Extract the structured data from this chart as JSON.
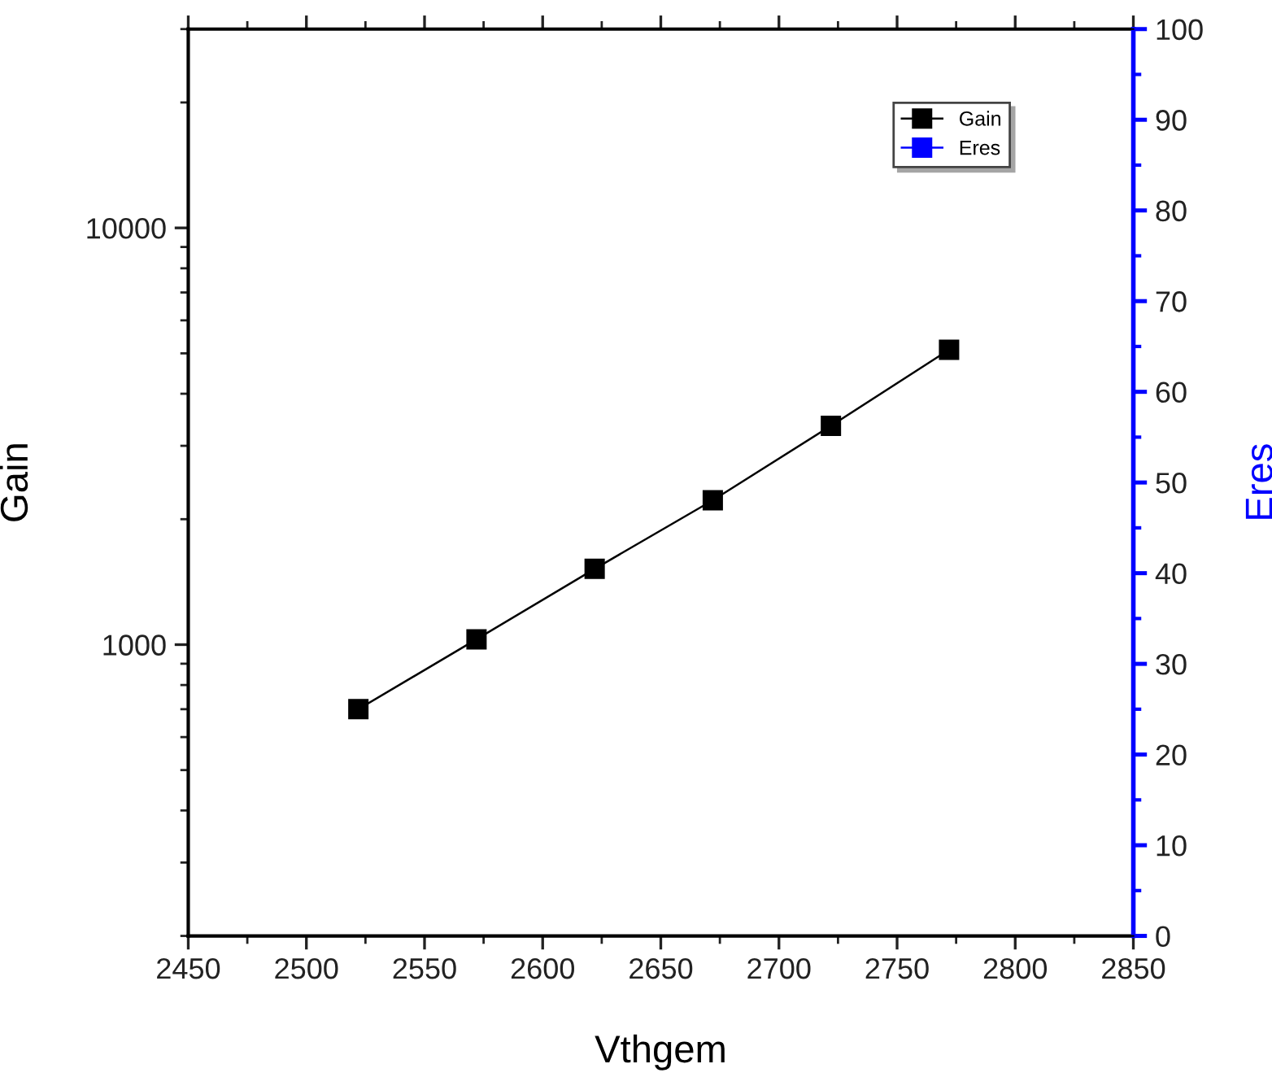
{
  "chart_data": {
    "type": "line",
    "xlabel": "Vthgem",
    "ylabel": "Gain",
    "y2label": "Eres",
    "x": [
      2522,
      2572,
      2622,
      2672,
      2722,
      2772
    ],
    "series": [
      {
        "name": "Gain",
        "color": "#000000",
        "values": [
          700,
          1030,
          1520,
          2220,
          3350,
          5100
        ]
      },
      {
        "name": "Eres",
        "color": "#0000ff",
        "axis": "y2",
        "values": [
          null,
          null,
          null,
          null,
          null,
          null
        ]
      }
    ],
    "log": "y",
    "xlim": [
      2450,
      2850
    ],
    "xticks": [
      2450,
      2500,
      2550,
      2600,
      2650,
      2700,
      2750,
      2800,
      2850
    ],
    "ylim": [
      200,
      30000
    ],
    "yticks": [
      1000,
      10000
    ],
    "y2lim": [
      0,
      100
    ],
    "y2ticks": [
      0,
      10,
      20,
      30,
      40,
      50,
      60,
      70,
      80,
      90,
      100
    ],
    "marker": "square",
    "line_style": "solid",
    "grid": false,
    "legend": "top right"
  }
}
